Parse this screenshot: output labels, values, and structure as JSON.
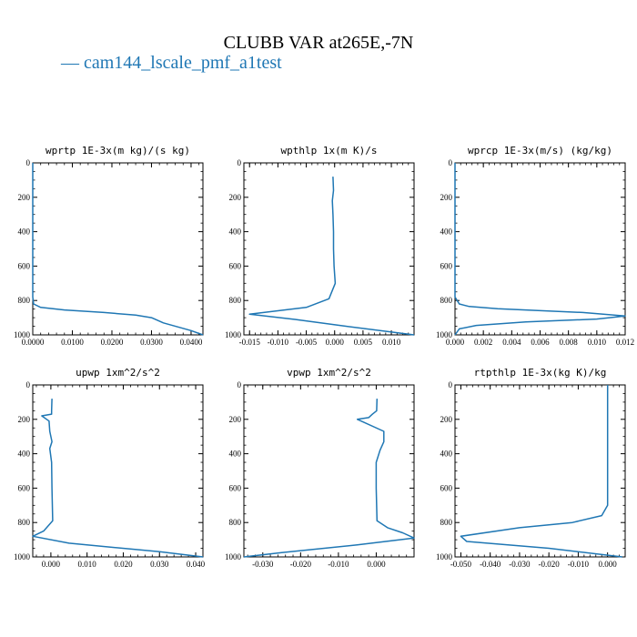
{
  "figure": {
    "title": "CLUBB VAR at265E,-7N",
    "legend": [
      {
        "marker": "—",
        "label": "cam144_lscale_pmf_a1test",
        "color": "#1f77b4"
      }
    ]
  },
  "chart_data": [
    {
      "type": "line",
      "title": "wprtp  1E-3x(m kg)/(s kg)",
      "xlim": [
        0,
        0.043
      ],
      "ylim": [
        1000,
        0
      ],
      "xticks": [
        0,
        0.01,
        0.02,
        0.03,
        0.04
      ],
      "xtick_labels": [
        "0.0000",
        "0.0100",
        "0.0200",
        "0.0300",
        "0.0400"
      ],
      "yticks": [
        0,
        200,
        400,
        600,
        800,
        1000
      ],
      "series": [
        {
          "color": "#1f77b4",
          "x": [
            0,
            0,
            0,
            0.0002,
            0.002,
            0.008,
            0.018,
            0.026,
            0.03,
            0.033,
            0.04,
            0.043
          ],
          "y": [
            0,
            400,
            780,
            820,
            840,
            855,
            870,
            885,
            900,
            930,
            975,
            1000
          ]
        }
      ]
    },
    {
      "type": "line",
      "title": "wpthlp  1x(m K)/s",
      "xlim": [
        -0.016,
        0.014
      ],
      "ylim": [
        1000,
        0
      ],
      "xticks": [
        -0.015,
        -0.01,
        -0.005,
        0,
        0.005,
        0.01
      ],
      "xtick_labels": [
        "-0.015",
        "-0.010",
        "-0.005",
        "0.000",
        "0.005",
        "0.010"
      ],
      "yticks": [
        0,
        200,
        400,
        600,
        800,
        1000
      ],
      "series": [
        {
          "color": "#1f77b4",
          "x": [
            -0.0003,
            -0.0002,
            -0.0004,
            -0.0003,
            -0.0002,
            -0.0002,
            -0.0001,
            0.0001,
            -0.001,
            -0.005,
            -0.015,
            -0.007,
            0.002,
            0.014
          ],
          "y": [
            80,
            160,
            220,
            300,
            400,
            500,
            600,
            700,
            790,
            840,
            880,
            910,
            950,
            1000
          ]
        }
      ]
    },
    {
      "type": "line",
      "title": "wprcp  1E-3x(m/s) (kg/kg)",
      "xlim": [
        0,
        0.012
      ],
      "ylim": [
        1000,
        0
      ],
      "xticks": [
        0,
        0.002,
        0.004,
        0.006,
        0.008,
        0.01,
        0.012
      ],
      "xtick_labels": [
        "0.000",
        "0.002",
        "0.004",
        "0.006",
        "0.008",
        "0.010",
        "0.012"
      ],
      "yticks": [
        0,
        200,
        400,
        600,
        800,
        1000
      ],
      "series": [
        {
          "color": "#1f77b4",
          "x": [
            0,
            0,
            0,
            0.0003,
            0.001,
            0.003,
            0.009,
            0.012,
            0.01,
            0.005,
            0.0015,
            0.0003,
            0
          ],
          "y": [
            0,
            400,
            780,
            820,
            835,
            848,
            870,
            890,
            908,
            925,
            945,
            965,
            1000
          ]
        }
      ]
    },
    {
      "type": "line",
      "title": "upwp  1xm^2/s^2",
      "xlim": [
        -0.005,
        0.042
      ],
      "ylim": [
        1000,
        0
      ],
      "xticks": [
        0,
        0.01,
        0.02,
        0.03,
        0.04
      ],
      "xtick_labels": [
        "0.000",
        "0.010",
        "0.020",
        "0.030",
        "0.040"
      ],
      "yticks": [
        0,
        200,
        400,
        600,
        800,
        1000
      ],
      "series": [
        {
          "color": "#1f77b4",
          "x": [
            0.0003,
            0.0002,
            0.0002,
            -0.0025,
            -0.0005,
            -0.0003,
            0.0003,
            -0.0003,
            0.0002,
            0.0003,
            0.0005,
            -0.002,
            -0.005,
            0.005,
            0.03,
            0.042
          ],
          "y": [
            80,
            150,
            170,
            180,
            210,
            270,
            330,
            370,
            450,
            600,
            790,
            850,
            880,
            920,
            970,
            1000
          ]
        }
      ]
    },
    {
      "type": "line",
      "title": "vpwp  1xm^2/s^2",
      "xlim": [
        -0.035,
        0.01
      ],
      "ylim": [
        1000,
        0
      ],
      "xticks": [
        -0.03,
        -0.02,
        -0.01,
        0
      ],
      "xtick_labels": [
        "-0.030",
        "-0.020",
        "-0.010",
        "0.000"
      ],
      "yticks": [
        0,
        200,
        400,
        600,
        800,
        1000
      ],
      "series": [
        {
          "color": "#1f77b4",
          "x": [
            0.0002,
            0.0001,
            -0.001,
            -0.002,
            -0.005,
            0.002,
            0.002,
            0.001,
            0,
            0,
            0.0002,
            0.003,
            0.007,
            0.01,
            -0.005,
            -0.025,
            -0.035
          ],
          "y": [
            80,
            150,
            170,
            190,
            200,
            270,
            330,
            380,
            450,
            600,
            790,
            830,
            860,
            890,
            930,
            975,
            1000
          ]
        }
      ]
    },
    {
      "type": "line",
      "title": "rtpthlp  1E-3x(kg K)/kg",
      "xlim": [
        -0.052,
        0.006
      ],
      "ylim": [
        1000,
        0
      ],
      "xticks": [
        -0.05,
        -0.04,
        -0.03,
        -0.02,
        -0.01,
        0
      ],
      "xtick_labels": [
        "-0.050",
        "-0.040",
        "-0.030",
        "-0.020",
        "-0.010",
        "0.000"
      ],
      "yticks": [
        0,
        200,
        400,
        600,
        800,
        1000
      ],
      "series": [
        {
          "color": "#1f77b4",
          "x": [
            0,
            0,
            0,
            -0.002,
            -0.012,
            -0.03,
            -0.05,
            -0.048,
            -0.02,
            0.005
          ],
          "y": [
            0,
            400,
            700,
            760,
            800,
            830,
            880,
            910,
            950,
            1000
          ]
        }
      ]
    }
  ]
}
